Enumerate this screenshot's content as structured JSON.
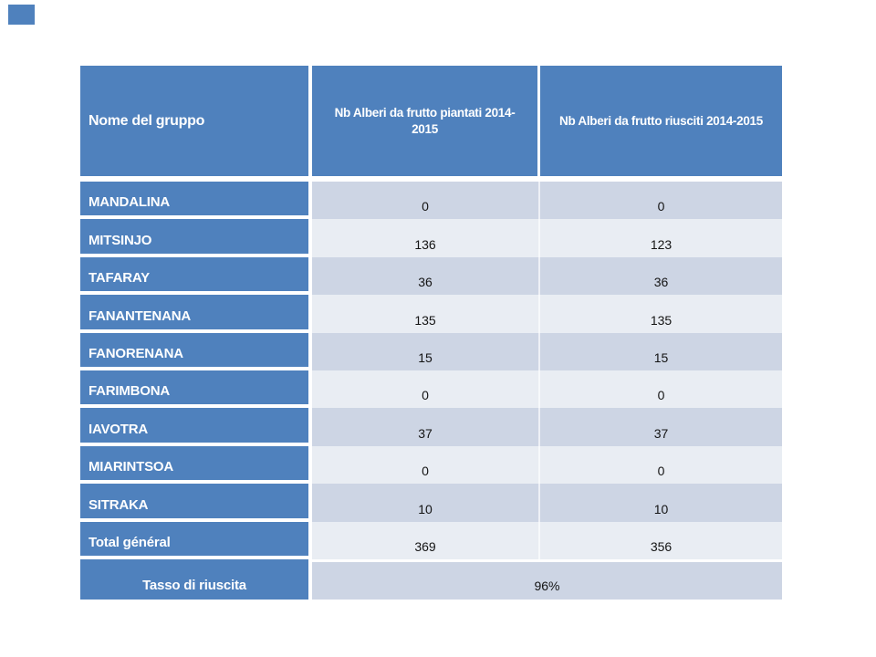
{
  "slide": {
    "background": "#FFFFFF"
  },
  "decor": {
    "corner_square_color": "#4F81BD"
  },
  "table": {
    "header": {
      "col1": "Nome del gruppo",
      "col2_line1": "Nb Alberi da frutto piantati  2014-",
      "col2_line2": "2015",
      "col3": "Nb Alberi da frutto riusciti 2014-2015"
    },
    "rows": [
      {
        "name": "MANDALINA",
        "planted": "0",
        "succeeded": "0"
      },
      {
        "name": "MITSINJO",
        "planted": "136",
        "succeeded": "123"
      },
      {
        "name": "TAFARAY",
        "planted": "36",
        "succeeded": "36"
      },
      {
        "name": "FANANTENANA",
        "planted": "135",
        "succeeded": "135"
      },
      {
        "name": "FANORENANA",
        "planted": "15",
        "succeeded": "15"
      },
      {
        "name": "FARIMBONA",
        "planted": "0",
        "succeeded": "0"
      },
      {
        "name": "IAVOTRA",
        "planted": "37",
        "succeeded": "37"
      },
      {
        "name": "MIARINTSOA",
        "planted": "0",
        "succeeded": "0"
      },
      {
        "name": "SITRAKA",
        "planted": "10",
        "succeeded": "10"
      },
      {
        "name": "Total général",
        "planted": "369",
        "succeeded": "356"
      }
    ],
    "footer": {
      "label": "Tasso di riuscita",
      "value": "96%"
    },
    "colors": {
      "header_blue": "#4F81BD",
      "band_dark": "#CDD5E4",
      "band_light": "#E9EDF3",
      "text_on_blue": "#FFFFFF",
      "text_data": "#141414"
    }
  },
  "chart_data": {
    "type": "table",
    "columns": [
      "Nome del gruppo",
      "Nb Alberi da frutto piantati 2014-2015",
      "Nb Alberi da frutto riusciti 2014-2015"
    ],
    "rows": [
      [
        "MANDALINA",
        0,
        0
      ],
      [
        "MITSINJO",
        136,
        123
      ],
      [
        "TAFARAY",
        36,
        36
      ],
      [
        "FANANTENANA",
        135,
        135
      ],
      [
        "FANORENANA",
        15,
        15
      ],
      [
        "FARIMBONA",
        0,
        0
      ],
      [
        "IAVOTRA",
        37,
        37
      ],
      [
        "MIARINTSOA",
        0,
        0
      ],
      [
        "SITRAKA",
        10,
        10
      ],
      [
        "Total général",
        369,
        356
      ]
    ],
    "success_rate_label": "Tasso di riuscita",
    "success_rate": "96%"
  }
}
